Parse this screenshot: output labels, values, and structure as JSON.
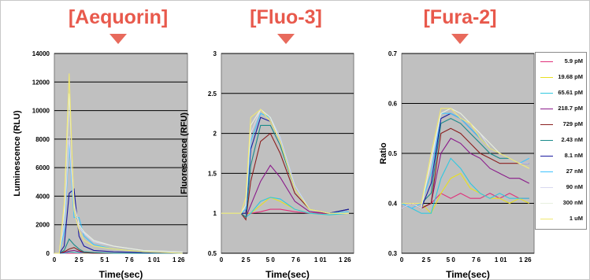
{
  "panel_titles": [
    "[Aequorin]",
    "[Fluo-3]",
    "[Fura-2]"
  ],
  "colors": {
    "title": "#e8594c",
    "plot_bg": "#c0c0c0",
    "grid": "#000000"
  },
  "legend": [
    {
      "label": "5.9 pM",
      "color": "#e0307a"
    },
    {
      "label": "19.68 pM",
      "color": "#e8e020"
    },
    {
      "label": "65.61 pM",
      "color": "#30c8e0"
    },
    {
      "label": "218.7 pM",
      "color": "#8a1a8a"
    },
    {
      "label": "729 pM",
      "color": "#8a1f1f"
    },
    {
      "label": "2.43 nM",
      "color": "#1a8a8a"
    },
    {
      "label": "8.1 nM",
      "color": "#1a1aa0"
    },
    {
      "label": "27 nM",
      "color": "#3fc4ff"
    },
    {
      "label": "90 nM",
      "color": "#d8d8f0"
    },
    {
      "label": "300 nM",
      "color": "#e8f0e0"
    },
    {
      "label": "1 uM",
      "color": "#f0e870"
    }
  ],
  "chart_data": [
    {
      "type": "line",
      "title": "[Aequorin]",
      "xlabel": "Time(sec)",
      "ylabel": "Luminescence (RLU)",
      "xlim": [
        0,
        135
      ],
      "ylim": [
        0,
        14000
      ],
      "xticks": [
        "0",
        "2 5",
        "5 1",
        "7 6",
        "1 01",
        "1 26"
      ],
      "xtick_values": [
        0,
        25,
        51,
        76,
        101,
        126
      ],
      "yticks": [
        "0",
        "2000",
        "4000",
        "6000",
        "8000",
        "10000",
        "12000",
        "14000"
      ],
      "ytick_values": [
        0,
        2000,
        4000,
        6000,
        8000,
        10000,
        12000,
        14000
      ],
      "grid": "horizontal",
      "series": [
        {
          "legend": "5.9 pM",
          "x": [
            0,
            5,
            10,
            15,
            20,
            25,
            30,
            40,
            60,
            90,
            130
          ],
          "y": [
            0,
            0,
            0,
            0,
            0,
            0,
            0,
            0,
            0,
            0,
            0
          ]
        },
        {
          "legend": "19.68 pM",
          "x": [
            0,
            5,
            10,
            15,
            20,
            25,
            30,
            40,
            60,
            90,
            130
          ],
          "y": [
            0,
            0,
            0,
            100,
            50,
            30,
            10,
            0,
            0,
            0,
            0
          ]
        },
        {
          "legend": "65.61 pM",
          "x": [
            0,
            5,
            10,
            15,
            20,
            25,
            30,
            40,
            60,
            90,
            130
          ],
          "y": [
            0,
            0,
            0,
            80,
            60,
            40,
            20,
            0,
            0,
            0,
            0
          ]
        },
        {
          "legend": "218.7 pM",
          "x": [
            0,
            5,
            10,
            15,
            20,
            25,
            30,
            40,
            60,
            90,
            130
          ],
          "y": [
            0,
            0,
            50,
            150,
            200,
            100,
            50,
            0,
            0,
            0,
            0
          ]
        },
        {
          "legend": "729 pM",
          "x": [
            0,
            5,
            10,
            15,
            20,
            25,
            30,
            40,
            60,
            90,
            130
          ],
          "y": [
            0,
            0,
            100,
            300,
            400,
            200,
            50,
            0,
            0,
            0,
            0
          ]
        },
        {
          "legend": "2.43 nM",
          "x": [
            0,
            5,
            10,
            15,
            20,
            25,
            30,
            40,
            60,
            90,
            130
          ],
          "y": [
            0,
            0,
            200,
            1000,
            600,
            300,
            100,
            50,
            0,
            0,
            0
          ]
        },
        {
          "legend": "8.1 nM",
          "x": [
            0,
            5,
            10,
            15,
            20,
            25,
            30,
            40,
            60,
            90,
            130
          ],
          "y": [
            0,
            0,
            500,
            4200,
            4500,
            1200,
            500,
            200,
            100,
            50,
            0
          ]
        },
        {
          "legend": "27 nM",
          "x": [
            0,
            5,
            10,
            15,
            20,
            25,
            30,
            40,
            60,
            90,
            130
          ],
          "y": [
            0,
            0,
            1500,
            7800,
            2500,
            2500,
            1200,
            600,
            300,
            100,
            0
          ]
        },
        {
          "legend": "90 nM",
          "x": [
            0,
            5,
            10,
            15,
            20,
            25,
            30,
            40,
            60,
            90,
            130
          ],
          "y": [
            0,
            0,
            2000,
            8200,
            3000,
            1800,
            1400,
            800,
            500,
            200,
            100
          ]
        },
        {
          "legend": "300 nM",
          "x": [
            0,
            5,
            10,
            15,
            20,
            25,
            30,
            40,
            60,
            90,
            130
          ],
          "y": [
            0,
            0,
            3000,
            11200,
            3500,
            2000,
            1500,
            900,
            500,
            200,
            100
          ]
        },
        {
          "legend": "1 uM",
          "x": [
            0,
            5,
            10,
            15,
            20,
            25,
            30,
            40,
            60,
            90,
            130
          ],
          "y": [
            0,
            0,
            3500,
            12600,
            3000,
            1600,
            900,
            500,
            300,
            100,
            0
          ]
        }
      ]
    },
    {
      "type": "line",
      "title": "[Fluo-3]",
      "xlabel": "Time(sec)",
      "ylabel": "Fluorescence (RFU)",
      "xlim": [
        0,
        135
      ],
      "ylim": [
        0.5,
        3
      ],
      "xticks": [
        "0",
        "2 5",
        "5 0",
        "7 6",
        "1 01",
        "1 26"
      ],
      "xtick_values": [
        0,
        25,
        50,
        76,
        101,
        126
      ],
      "yticks": [
        "0.5",
        "1",
        "1.5",
        "2",
        "2.5",
        "3"
      ],
      "ytick_values": [
        0.5,
        1,
        1.5,
        2,
        2.5,
        3
      ],
      "grid": "horizontal",
      "series": [
        {
          "legend": "5.9 pM",
          "x": [
            0,
            20,
            25,
            30,
            40,
            50,
            60,
            75,
            90,
            110,
            130
          ],
          "y": [
            1,
            1,
            1,
            1,
            1.02,
            1.05,
            1.05,
            1.02,
            1,
            1,
            1.05
          ]
        },
        {
          "legend": "19.68 pM",
          "x": [
            0,
            20,
            25,
            30,
            40,
            50,
            60,
            75,
            90,
            110,
            130
          ],
          "y": [
            1,
            1,
            1,
            1,
            1.1,
            1.2,
            1.15,
            1.05,
            1,
            0.98,
            1
          ]
        },
        {
          "legend": "65.61 pM",
          "x": [
            0,
            20,
            25,
            30,
            40,
            50,
            60,
            75,
            90,
            110,
            130
          ],
          "y": [
            1,
            1,
            0.95,
            1,
            1.15,
            1.2,
            1.18,
            1.05,
            1,
            0.98,
            1
          ]
        },
        {
          "legend": "218.7 pM",
          "x": [
            0,
            20,
            25,
            30,
            40,
            50,
            60,
            75,
            90,
            110,
            130
          ],
          "y": [
            1,
            1,
            0.95,
            1.1,
            1.4,
            1.6,
            1.45,
            1.15,
            1.02,
            1,
            1.05
          ]
        },
        {
          "legend": "729 pM",
          "x": [
            0,
            20,
            25,
            30,
            40,
            50,
            60,
            75,
            90,
            110,
            130
          ],
          "y": [
            1,
            1,
            0.92,
            1.4,
            1.9,
            2.0,
            1.75,
            1.25,
            1.05,
            1,
            1.05
          ]
        },
        {
          "legend": "2.43 nM",
          "x": [
            0,
            20,
            25,
            30,
            40,
            50,
            60,
            75,
            90,
            110,
            130
          ],
          "y": [
            1,
            1,
            0.95,
            1.6,
            2.1,
            2.1,
            1.85,
            1.3,
            1.05,
            1,
            1.05
          ]
        },
        {
          "legend": "8.1 nM",
          "x": [
            0,
            20,
            25,
            30,
            40,
            50,
            60,
            75,
            90,
            110,
            130
          ],
          "y": [
            1,
            1,
            1,
            1.8,
            2.2,
            2.15,
            1.9,
            1.3,
            1.05,
            1,
            1.05
          ]
        },
        {
          "legend": "27 nM",
          "x": [
            0,
            20,
            25,
            30,
            40,
            50,
            60,
            75,
            90,
            110,
            130
          ],
          "y": [
            1,
            1,
            1.05,
            1.9,
            2.25,
            2.2,
            1.95,
            1.35,
            1.05,
            1,
            1.02
          ]
        },
        {
          "legend": "90 nM",
          "x": [
            0,
            20,
            25,
            30,
            40,
            50,
            60,
            75,
            90,
            110,
            130
          ],
          "y": [
            1,
            1,
            1.1,
            2.0,
            2.3,
            2.2,
            1.95,
            1.35,
            1.05,
            1,
            1
          ]
        },
        {
          "legend": "300 nM",
          "x": [
            0,
            20,
            25,
            30,
            40,
            50,
            60,
            75,
            90,
            110,
            130
          ],
          "y": [
            1,
            1,
            1.1,
            2.1,
            2.3,
            2.2,
            1.9,
            1.3,
            1.05,
            1,
            1
          ]
        },
        {
          "legend": "1 uM",
          "x": [
            0,
            20,
            25,
            30,
            40,
            50,
            60,
            75,
            90,
            110,
            130
          ],
          "y": [
            1,
            1,
            1.2,
            2.2,
            2.3,
            2.15,
            1.9,
            1.3,
            1.05,
            1,
            1
          ]
        }
      ]
    },
    {
      "type": "line",
      "title": "[Fura-2]",
      "xlabel": "Time(sec)",
      "ylabel": "Ratio",
      "xlim": [
        0,
        135
      ],
      "ylim": [
        0.3,
        0.7
      ],
      "xticks": [
        "0",
        "2 5",
        "5 0",
        "7 6",
        "1 01",
        "1 26"
      ],
      "xtick_values": [
        0,
        25,
        50,
        76,
        101,
        126
      ],
      "yticks": [
        "0.3",
        "0.4",
        "0.5",
        "0.6",
        "0.7"
      ],
      "ytick_values": [
        0.3,
        0.4,
        0.5,
        0.6,
        0.7
      ],
      "grid": "horizontal",
      "series": [
        {
          "legend": "5.9 pM",
          "x": [
            0,
            10,
            20,
            30,
            40,
            50,
            60,
            70,
            80,
            90,
            100,
            110,
            120,
            130
          ],
          "y": [
            0.39,
            0.4,
            0.39,
            0.4,
            0.42,
            0.41,
            0.42,
            0.41,
            0.41,
            0.42,
            0.41,
            0.42,
            0.41,
            0.41
          ]
        },
        {
          "legend": "19.68 pM",
          "x": [
            0,
            10,
            20,
            30,
            40,
            50,
            60,
            70,
            80,
            90,
            100,
            110,
            120,
            130
          ],
          "y": [
            0.4,
            0.4,
            0.4,
            0.38,
            0.42,
            0.45,
            0.46,
            0.43,
            0.42,
            0.41,
            0.41,
            0.4,
            0.41,
            0.4
          ]
        },
        {
          "legend": "65.61 pM",
          "x": [
            0,
            10,
            20,
            30,
            40,
            50,
            60,
            70,
            80,
            90,
            100,
            110,
            120,
            130
          ],
          "y": [
            0.4,
            0.39,
            0.38,
            0.38,
            0.45,
            0.49,
            0.47,
            0.44,
            0.42,
            0.41,
            0.42,
            0.41,
            0.41,
            0.41
          ]
        },
        {
          "legend": "218.7 pM",
          "x": [
            0,
            10,
            20,
            30,
            40,
            50,
            60,
            70,
            80,
            90,
            100,
            110,
            120,
            130
          ],
          "y": [
            0.39,
            0.4,
            0.39,
            0.4,
            0.5,
            0.53,
            0.52,
            0.5,
            0.49,
            0.47,
            0.46,
            0.45,
            0.45,
            0.44
          ]
        },
        {
          "legend": "729 pM",
          "x": [
            0,
            10,
            20,
            30,
            40,
            50,
            60,
            70,
            80,
            90,
            100,
            110,
            120,
            130
          ],
          "y": [
            0.4,
            0.4,
            0.39,
            0.4,
            0.54,
            0.55,
            0.54,
            0.52,
            0.5,
            0.49,
            0.48,
            0.48,
            0.48,
            0.48
          ]
        },
        {
          "legend": "2.43 nM",
          "x": [
            0,
            10,
            20,
            30,
            40,
            50,
            60,
            70,
            80,
            90,
            100,
            110,
            120,
            130
          ],
          "y": [
            0.39,
            0.4,
            0.4,
            0.42,
            0.56,
            0.57,
            0.56,
            0.54,
            0.52,
            0.5,
            0.49,
            0.49,
            0.48,
            0.48
          ]
        },
        {
          "legend": "8.1 nM",
          "x": [
            0,
            10,
            20,
            30,
            40,
            50,
            60,
            70,
            80,
            90,
            100,
            110,
            120,
            130
          ],
          "y": [
            0.4,
            0.4,
            0.39,
            0.44,
            0.57,
            0.58,
            0.57,
            0.55,
            0.53,
            0.51,
            0.5,
            0.49,
            0.48,
            0.48
          ]
        },
        {
          "legend": "27 nM",
          "x": [
            0,
            10,
            20,
            30,
            40,
            50,
            60,
            70,
            80,
            90,
            100,
            110,
            120,
            130
          ],
          "y": [
            0.4,
            0.39,
            0.4,
            0.46,
            0.58,
            0.58,
            0.57,
            0.55,
            0.53,
            0.51,
            0.5,
            0.49,
            0.48,
            0.49
          ]
        },
        {
          "legend": "90 nM",
          "x": [
            0,
            10,
            20,
            30,
            40,
            50,
            60,
            70,
            80,
            90,
            100,
            110,
            120,
            130
          ],
          "y": [
            0.39,
            0.4,
            0.4,
            0.48,
            0.58,
            0.59,
            0.57,
            0.56,
            0.54,
            0.51,
            0.5,
            0.49,
            0.48,
            0.48
          ]
        },
        {
          "legend": "300 nM",
          "x": [
            0,
            10,
            20,
            30,
            40,
            50,
            60,
            70,
            80,
            90,
            100,
            110,
            120,
            130
          ],
          "y": [
            0.4,
            0.4,
            0.39,
            0.49,
            0.58,
            0.59,
            0.58,
            0.56,
            0.54,
            0.52,
            0.5,
            0.49,
            0.48,
            0.47
          ]
        },
        {
          "legend": "1 uM",
          "x": [
            0,
            10,
            20,
            30,
            40,
            50,
            60,
            70,
            80,
            90,
            100,
            110,
            120,
            130
          ],
          "y": [
            0.4,
            0.4,
            0.4,
            0.5,
            0.59,
            0.59,
            0.57,
            0.56,
            0.53,
            0.51,
            0.5,
            0.49,
            0.48,
            0.47
          ]
        }
      ]
    }
  ]
}
